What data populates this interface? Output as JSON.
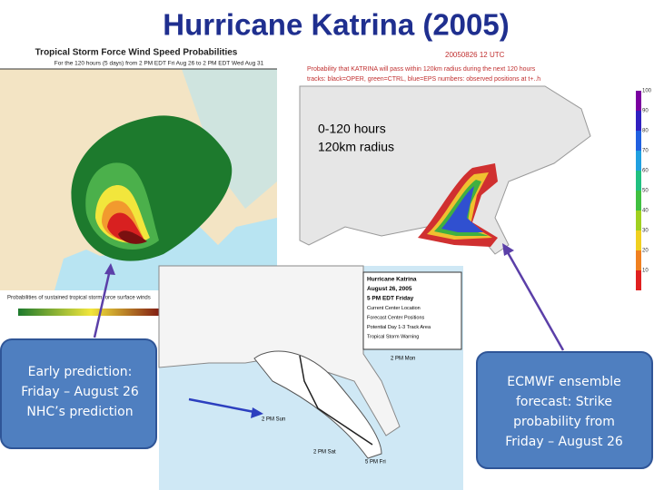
{
  "header": {
    "title": "Hurricane Katrina (2005)"
  },
  "wind_map": {
    "title": "Tropical Storm Force Wind Speed Probabilities",
    "subtitle": "For the 120 hours (5 days) from 2 PM EDT Fri Aug 26 to 2 PM EDT Wed Aug 31",
    "footnote": "Probabilities of sustained tropical storm force surface winds"
  },
  "ensemble_map": {
    "title": "20050826 12 UTC",
    "caption": "Probability that KATRINA will pass within 120km radius during the next 120 hours",
    "tracks": "tracks: black=OPER, green=CTRL, blue=EPS numbers: observed positions at t+..h",
    "annotation": [
      "0-120 hours",
      "120km radius"
    ],
    "colorbar_ticks": [
      100,
      90,
      80,
      70,
      60,
      50,
      40,
      30,
      20,
      10
    ]
  },
  "nhc_map": {
    "legend": [
      "Hurricane Katrina",
      "August 26, 2005",
      "5 PM EDT Friday",
      "Current Center Location",
      "Forecast Center Positions",
      "Potential Day 1-3 Track Area",
      "Tropical Storm Warning"
    ],
    "labels": [
      "2 PM Mon",
      "2 PM Sun",
      "2 PM Sat",
      "5 PM Fri"
    ]
  },
  "callouts": {
    "left": [
      "Early prediction:",
      "Friday – August 26",
      "NHC’s prediction"
    ],
    "right": [
      "ECMWF ensemble",
      "forecast: Strike",
      "probability from",
      "Friday – August 26"
    ]
  }
}
